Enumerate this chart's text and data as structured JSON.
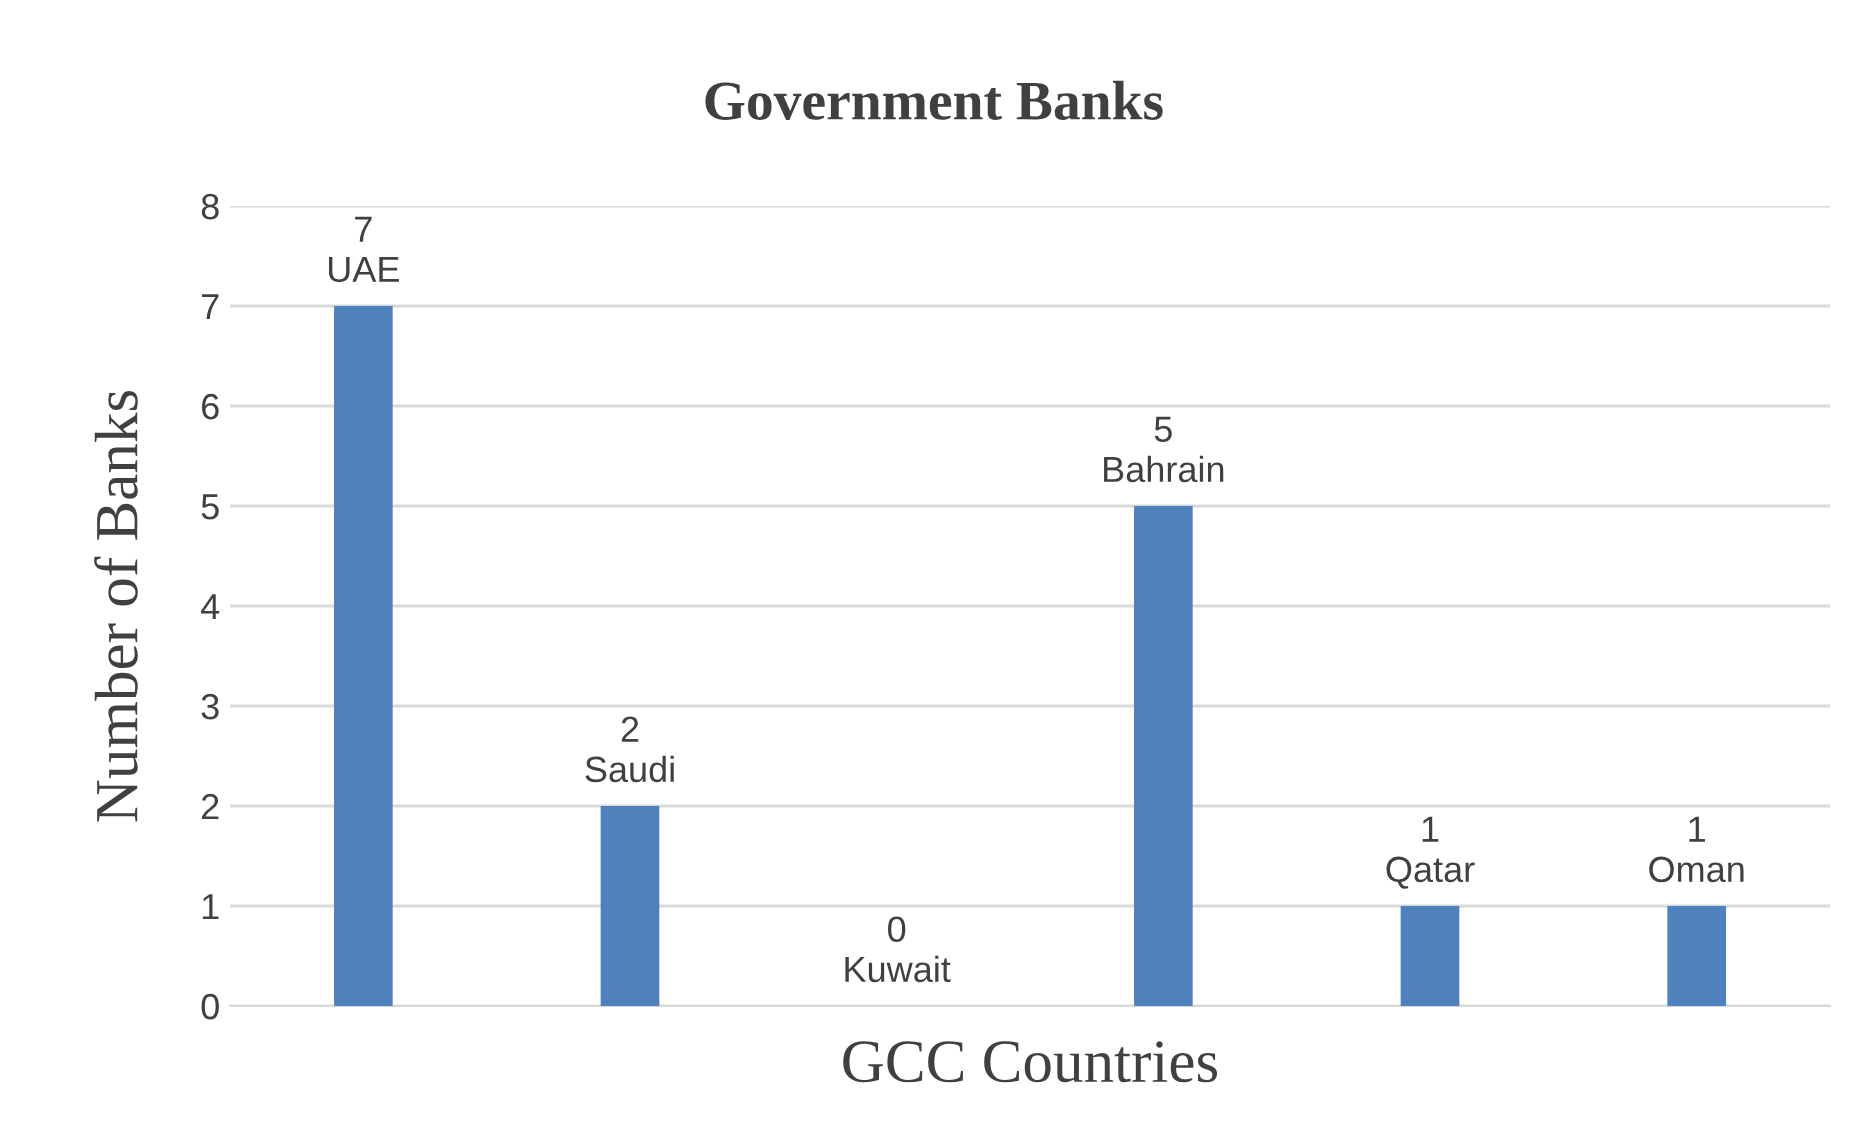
{
  "chart_data": {
    "type": "bar",
    "title": "Government Banks",
    "xlabel": "GCC Countries",
    "ylabel": "Number of Banks",
    "categories": [
      "UAE",
      "Saudi",
      "Kuwait",
      "Bahrain",
      "Qatar",
      "Oman"
    ],
    "values": [
      7,
      2,
      0,
      5,
      1,
      1
    ],
    "color": "#4f81bd",
    "ylim": [
      0,
      8
    ],
    "yticks": [
      0,
      1,
      2,
      3,
      4,
      5,
      6,
      7,
      8
    ],
    "grid": "y",
    "data_labels": true,
    "tick_labels": "y"
  }
}
